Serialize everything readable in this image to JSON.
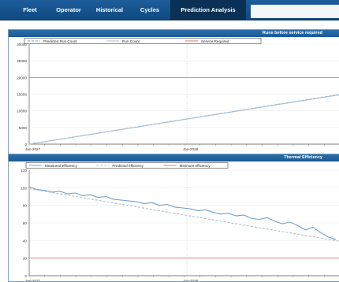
{
  "nav": {
    "tabs": [
      {
        "label": "Fleet",
        "active": false
      },
      {
        "label": "Operator",
        "active": false
      },
      {
        "label": "Historical",
        "active": false
      },
      {
        "label": "Cycles",
        "active": false
      },
      {
        "label": "Prediction Analysis",
        "active": true
      }
    ]
  },
  "colors": {
    "nav": "#0f4a83",
    "header": "#1f629d",
    "series_primary": "#6f9fcd",
    "series_secondary": "#a8bfd5",
    "limit": "#e07070"
  },
  "panels": [
    {
      "title": "Runs before service required"
    },
    {
      "title": "Thermal Efficiency"
    }
  ],
  "chart_data": [
    {
      "type": "line",
      "title": "Runs before service required",
      "legend": [
        "Predicted Run Count",
        "Run Count",
        "Service Required"
      ],
      "legend_position": "top",
      "xlabel": "",
      "ylabel": "",
      "x_tick_labels": [
        "Jan-2027",
        "Jan-2028"
      ],
      "y_ticks": [
        0,
        5000,
        10000,
        15000,
        20000,
        25000,
        30000
      ],
      "y_tick_labels": [
        "0",
        "5000",
        "10000",
        "15000",
        "20000",
        "25000",
        "30000"
      ],
      "ylim": [
        0,
        30000
      ],
      "xlim": [
        0,
        24.3
      ],
      "grid": true,
      "series": [
        {
          "name": "Predicted Run Count",
          "style": "dashed",
          "x": [
            0,
            24.3
          ],
          "y": [
            0,
            14900
          ]
        },
        {
          "name": "Run Count",
          "style": "solid",
          "x": [
            0,
            24.3
          ],
          "y": [
            0,
            14800
          ]
        },
        {
          "name": "Service Required",
          "style": "limit",
          "x": [
            0,
            24.3
          ],
          "y": [
            20000,
            20000
          ]
        }
      ]
    },
    {
      "type": "line",
      "title": "Thermal Efficiency",
      "legend": [
        "Measured efficiency",
        "Predicted efficiency",
        "Minimum efficiency"
      ],
      "legend_position": "top",
      "xlabel": "",
      "ylabel": "",
      "x_tick_labels": [
        "Jan-2027",
        "Jan-2028"
      ],
      "y_ticks": [
        0,
        20,
        40,
        60,
        80,
        100,
        120
      ],
      "y_tick_labels": [
        "0",
        "20",
        "40",
        "60",
        "80",
        "100",
        "120"
      ],
      "ylim": [
        0,
        120
      ],
      "xlim": [
        0,
        24.3
      ],
      "grid": true,
      "series": [
        {
          "name": "Measured efficiency",
          "style": "solid",
          "x": [
            0,
            0.6,
            1.2,
            1.8,
            2.4,
            3.0,
            3.6,
            4.2,
            4.8,
            5.4,
            6.0,
            6.6,
            7.2,
            7.8,
            8.4,
            9.0,
            9.6,
            10.2,
            10.8,
            11.4,
            12.0,
            12.6,
            13.2,
            13.8,
            14.4,
            15.0,
            15.6,
            16.2,
            16.8,
            17.4,
            18.0,
            18.6,
            19.2,
            19.8,
            20.4,
            21.0,
            21.6,
            22.2,
            22.8,
            23.4,
            24.0
          ],
          "y": [
            101,
            98,
            97,
            95,
            96,
            93,
            94,
            91,
            92,
            89,
            90,
            87,
            86,
            85,
            84,
            82,
            83,
            80,
            81,
            78,
            77,
            76,
            74,
            75,
            72,
            70,
            71,
            68,
            69,
            65,
            64,
            66,
            62,
            59,
            61,
            57,
            52,
            55,
            49,
            44,
            41
          ]
        },
        {
          "name": "Predicted efficiency",
          "style": "dashed",
          "x": [
            0,
            24.3
          ],
          "y": [
            99,
            39
          ]
        },
        {
          "name": "Minimum efficiency",
          "style": "limit",
          "x": [
            0,
            24.3
          ],
          "y": [
            20,
            20
          ]
        }
      ]
    }
  ]
}
